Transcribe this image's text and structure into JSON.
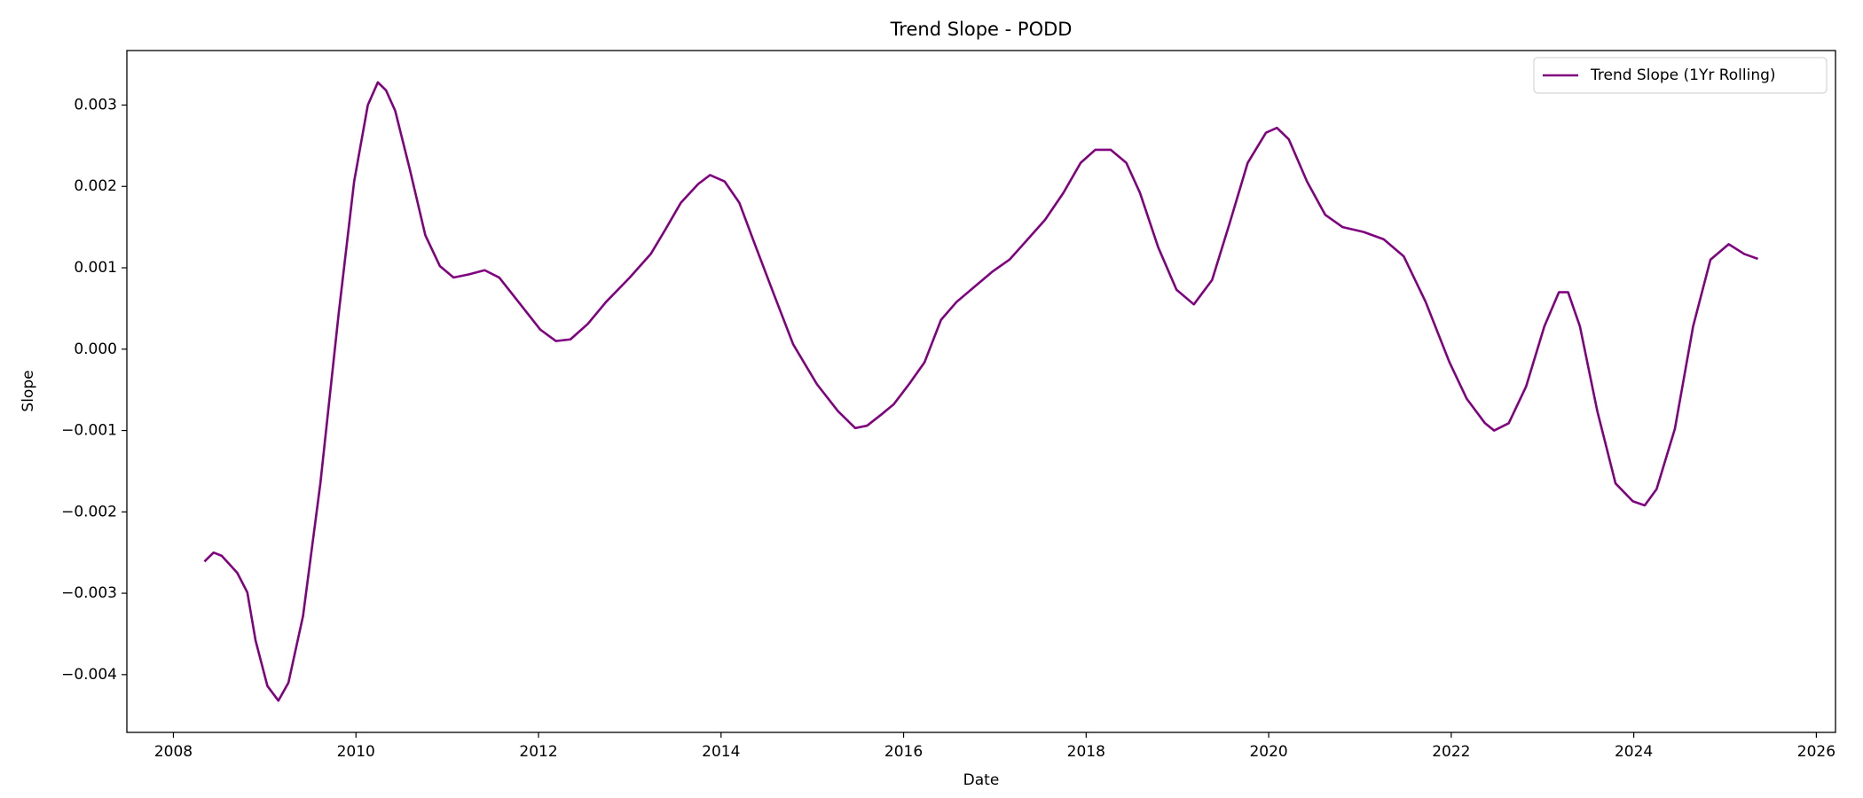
{
  "chart_data": {
    "type": "line",
    "title": "Trend Slope - PODD",
    "xlabel": "Date",
    "ylabel": "Slope",
    "x": [
      2008.34,
      2008.44,
      2008.53,
      2008.7,
      2008.81,
      2008.9,
      2009.03,
      2009.15,
      2009.26,
      2009.42,
      2009.61,
      2009.81,
      2009.98,
      2010.13,
      2010.24,
      2010.33,
      2010.43,
      2010.59,
      2010.76,
      2010.92,
      2011.07,
      2011.24,
      2011.41,
      2011.57,
      2011.76,
      2012.02,
      2012.19,
      2012.35,
      2012.54,
      2012.74,
      2013.0,
      2013.23,
      2013.39,
      2013.56,
      2013.75,
      2013.88,
      2014.04,
      2014.2,
      2014.36,
      2014.56,
      2014.79,
      2015.05,
      2015.28,
      2015.47,
      2015.6,
      2015.76,
      2015.89,
      2016.06,
      2016.23,
      2016.41,
      2016.58,
      2016.77,
      2016.97,
      2017.16,
      2017.36,
      2017.55,
      2017.75,
      2017.94,
      2018.1,
      2018.27,
      2018.44,
      2018.59,
      2018.79,
      2018.99,
      2019.18,
      2019.38,
      2019.57,
      2019.77,
      2019.97,
      2020.09,
      2020.22,
      2020.42,
      2020.62,
      2020.81,
      2021.04,
      2021.26,
      2021.48,
      2021.72,
      2021.98,
      2022.17,
      2022.37,
      2022.47,
      2022.63,
      2022.82,
      2023.02,
      2023.18,
      2023.28,
      2023.41,
      2023.6,
      2023.8,
      2023.99,
      2024.12,
      2024.25,
      2024.45,
      2024.65,
      2024.84,
      2025.04,
      2025.21,
      2025.36
    ],
    "series": [
      {
        "name": "Trend Slope (1Yr Rolling)",
        "color": "#800080",
        "values": [
          -0.00261,
          -0.0025,
          -0.00254,
          -0.00275,
          -0.00299,
          -0.00358,
          -0.00414,
          -0.00432,
          -0.0041,
          -0.00328,
          -0.00165,
          0.00043,
          0.00206,
          0.003,
          0.00328,
          0.00318,
          0.00293,
          0.00221,
          0.0014,
          0.00102,
          0.00088,
          0.00092,
          0.00097,
          0.00088,
          0.00061,
          0.00024,
          0.0001,
          0.00012,
          0.00031,
          0.00058,
          0.00088,
          0.00117,
          0.00147,
          0.0018,
          0.00203,
          0.00214,
          0.00206,
          0.0018,
          0.00132,
          0.00073,
          6e-05,
          -0.00043,
          -0.00076,
          -0.00097,
          -0.00094,
          -0.0008,
          -0.00068,
          -0.00043,
          -0.00016,
          0.00036,
          0.00058,
          0.00076,
          0.00095,
          0.0011,
          0.00135,
          0.00159,
          0.00192,
          0.00229,
          0.00245,
          0.00245,
          0.00229,
          0.00192,
          0.00125,
          0.00073,
          0.00055,
          0.00085,
          0.00154,
          0.00229,
          0.00266,
          0.00272,
          0.00258,
          0.00206,
          0.00165,
          0.0015,
          0.00144,
          0.00135,
          0.00114,
          0.00058,
          -0.00016,
          -0.00061,
          -0.00091,
          -0.001,
          -0.00091,
          -0.00046,
          0.00028,
          0.0007,
          0.0007,
          0.00028,
          -0.00076,
          -0.00165,
          -0.00187,
          -0.00192,
          -0.00172,
          -0.00098,
          0.00028,
          0.0011,
          0.00129,
          0.00117,
          0.00111
        ]
      }
    ],
    "xlim": [
      2007.49,
      2026.21
    ],
    "xticks": [
      2008,
      2010,
      2012,
      2014,
      2016,
      2018,
      2020,
      2022,
      2024,
      2026
    ],
    "ylim": [
      -0.00471,
      0.00367
    ],
    "yticks": [
      {
        "value": -0.004,
        "label": "−0.004"
      },
      {
        "value": -0.003,
        "label": "−0.003"
      },
      {
        "value": -0.002,
        "label": "−0.002"
      },
      {
        "value": -0.001,
        "label": "−0.001"
      },
      {
        "value": 0,
        "label": "0.000"
      },
      {
        "value": 0.001,
        "label": "0.001"
      },
      {
        "value": 0.002,
        "label": "0.002"
      },
      {
        "value": 0.003,
        "label": "0.003"
      }
    ],
    "grid": false,
    "legend": "upper right"
  }
}
